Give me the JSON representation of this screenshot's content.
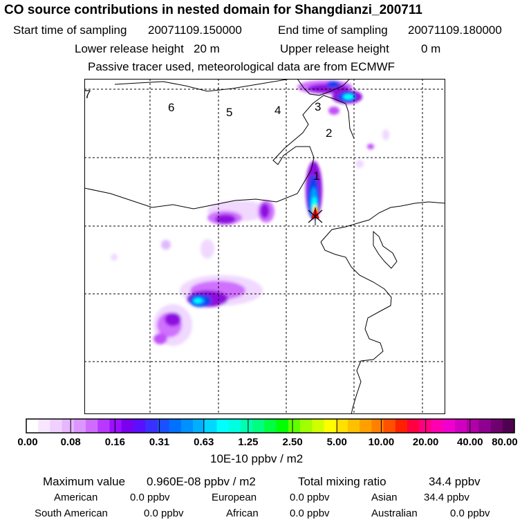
{
  "title": "CO  source contributions in nested domain for Shangdianzi_200711",
  "header": {
    "start_label": "Start time of sampling",
    "start_value": "20071109.150000",
    "end_label": "End time of sampling",
    "end_value": "20071109.180000",
    "lower_label": "Lower release height",
    "lower_value": "20 m",
    "upper_label": "Upper release height",
    "upper_value": "0 m",
    "note": "Passive tracer used, meteorological data are from ECMWF"
  },
  "map": {
    "trajectory_labels": [
      "1",
      "2",
      "3",
      "4",
      "5",
      "6",
      "7"
    ],
    "colors": {
      "light_violet": "#f0d8ff",
      "violet": "#d070ff",
      "purple": "#9010e0",
      "deep_purple": "#6010d0",
      "blue": "#1040f0",
      "sky": "#00a0ff",
      "cyan": "#00ffff",
      "yellow": "#ffe000",
      "red": "#ff0000"
    }
  },
  "colorbar": {
    "ticks": [
      "0.00",
      "0.08",
      "0.16",
      "0.31",
      "0.63",
      "1.25",
      "2.50",
      "5.00",
      "10.00",
      "20.00",
      "40.00",
      "80.00"
    ],
    "units": "10E-10 ppbv / m2",
    "colors": [
      "#ffffff",
      "#f7e6ff",
      "#efd0ff",
      "#e6b6ff",
      "#dc96ff",
      "#cf6cff",
      "#b838ff",
      "#9a10ff",
      "#7a00f0",
      "#5a10ff",
      "#3a30ff",
      "#1a50ff",
      "#0070ff",
      "#0090ff",
      "#00b0ff",
      "#00d8ff",
      "#00ffff",
      "#00ffe0",
      "#00ffb0",
      "#00ff80",
      "#00ff40",
      "#00ff00",
      "#60ff00",
      "#a0ff00",
      "#d0ff00",
      "#ffff00",
      "#ffe000",
      "#ffc000",
      "#ffa000",
      "#ff8000",
      "#ff5000",
      "#ff2000",
      "#ff0040",
      "#ff0080",
      "#ff00b0",
      "#f000d0",
      "#d000c0",
      "#b000a8",
      "#900090",
      "#700070",
      "#500050"
    ]
  },
  "stats": {
    "max_label": "Maximum value",
    "max_value": "0.960E-08 ppbv / m2",
    "total_label": "Total mixing ratio",
    "total_value": "34.4 ppbv",
    "american_label": "American",
    "american_value": "0.0 ppbv",
    "european_label": "European",
    "european_value": "0.0 ppbv",
    "asian_label": "Asian",
    "asian_value": "34.4 ppbv",
    "south_american_label": "South American",
    "south_american_value": "0.0 ppbv",
    "african_label": "African",
    "african_value": "0.0 ppbv",
    "australian_label": "Australian",
    "australian_value": "0.0 ppbv"
  }
}
